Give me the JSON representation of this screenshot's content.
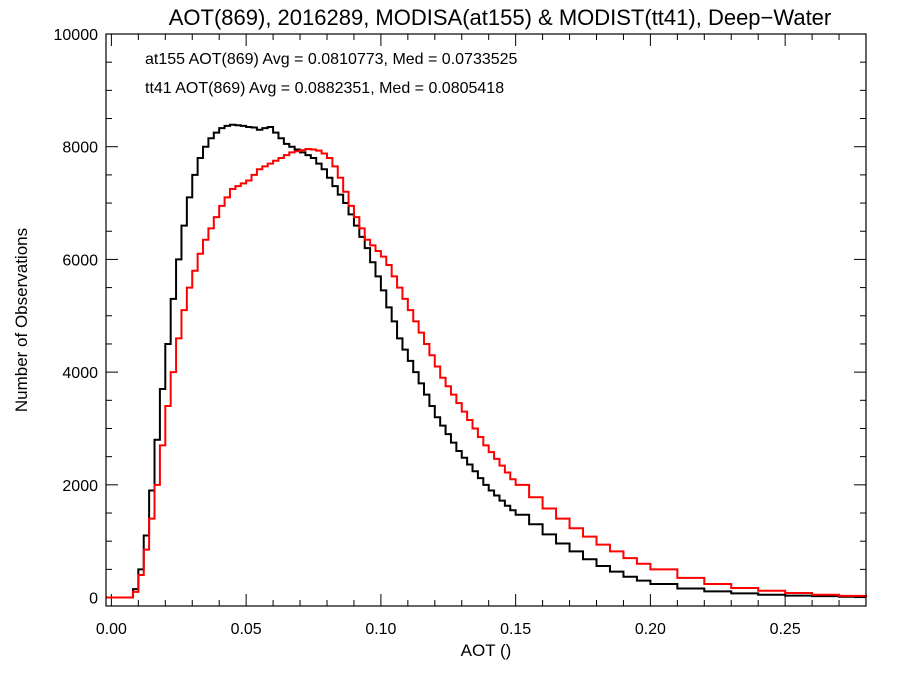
{
  "chart_data": {
    "type": "line",
    "title": "AOT(869), 2016289, MODISA(at155) & MODIST(tt41), Deep−Water",
    "xlabel": "AOT ()",
    "ylabel": "Number of Observations",
    "xlim": [
      -0.002,
      0.28
    ],
    "ylim": [
      -150,
      10000
    ],
    "xticks": [
      0.0,
      0.05,
      0.1,
      0.15,
      0.2,
      0.25
    ],
    "xtick_labels": [
      "0.00",
      "0.05",
      "0.10",
      "0.15",
      "0.20",
      "0.25"
    ],
    "yticks": [
      0,
      2000,
      4000,
      6000,
      8000,
      10000
    ],
    "ytick_labels": [
      "0",
      "2000",
      "4000",
      "6000",
      "8000",
      "10000"
    ],
    "grid": false,
    "legend_position": "top-left",
    "series": [
      {
        "name": "at155",
        "color": "#000000",
        "annotation": "at155 AOT(869) Avg = 0.0810773, Med = 0.0733525",
        "x": [
          -0.002,
          0.006,
          0.008,
          0.01,
          0.012,
          0.014,
          0.016,
          0.018,
          0.02,
          0.022,
          0.024,
          0.026,
          0.028,
          0.03,
          0.032,
          0.034,
          0.036,
          0.038,
          0.04,
          0.042,
          0.044,
          0.046,
          0.048,
          0.05,
          0.052,
          0.054,
          0.056,
          0.058,
          0.06,
          0.062,
          0.064,
          0.066,
          0.068,
          0.07,
          0.072,
          0.074,
          0.076,
          0.078,
          0.08,
          0.082,
          0.084,
          0.086,
          0.088,
          0.09,
          0.092,
          0.094,
          0.096,
          0.098,
          0.1,
          0.102,
          0.104,
          0.106,
          0.108,
          0.11,
          0.112,
          0.114,
          0.116,
          0.118,
          0.12,
          0.122,
          0.124,
          0.126,
          0.128,
          0.13,
          0.132,
          0.134,
          0.136,
          0.138,
          0.14,
          0.142,
          0.144,
          0.146,
          0.148,
          0.15,
          0.155,
          0.16,
          0.165,
          0.17,
          0.175,
          0.18,
          0.185,
          0.19,
          0.195,
          0.2,
          0.21,
          0.22,
          0.23,
          0.24,
          0.25,
          0.26,
          0.27,
          0.28
        ],
        "y": [
          0,
          0,
          150,
          500,
          1100,
          1900,
          2800,
          3700,
          4500,
          5300,
          6000,
          6600,
          7100,
          7500,
          7800,
          8000,
          8150,
          8250,
          8330,
          8370,
          8390,
          8380,
          8370,
          8350,
          8340,
          8300,
          8330,
          8350,
          8250,
          8150,
          8050,
          8000,
          7950,
          7900,
          7850,
          7800,
          7700,
          7600,
          7450,
          7300,
          7150,
          7000,
          6800,
          6600,
          6400,
          6200,
          5950,
          5700,
          5450,
          5150,
          4900,
          4600,
          4400,
          4200,
          4000,
          3800,
          3600,
          3400,
          3200,
          3050,
          2900,
          2750,
          2600,
          2480,
          2360,
          2240,
          2120,
          2000,
          1900,
          1810,
          1720,
          1630,
          1550,
          1470,
          1300,
          1120,
          960,
          820,
          680,
          560,
          460,
          370,
          300,
          240,
          160,
          110,
          75,
          50,
          35,
          25,
          15,
          10
        ]
      },
      {
        "name": "tt41",
        "color": "#ff0000",
        "annotation": "tt41 AOT(869) Avg = 0.0882351, Med = 0.0805418",
        "x": [
          -0.002,
          0.006,
          0.008,
          0.01,
          0.012,
          0.014,
          0.016,
          0.018,
          0.02,
          0.022,
          0.024,
          0.026,
          0.028,
          0.03,
          0.032,
          0.034,
          0.036,
          0.038,
          0.04,
          0.042,
          0.044,
          0.046,
          0.048,
          0.05,
          0.052,
          0.054,
          0.056,
          0.058,
          0.06,
          0.062,
          0.064,
          0.066,
          0.068,
          0.07,
          0.072,
          0.074,
          0.076,
          0.078,
          0.08,
          0.082,
          0.084,
          0.086,
          0.088,
          0.09,
          0.092,
          0.094,
          0.096,
          0.098,
          0.1,
          0.102,
          0.104,
          0.106,
          0.108,
          0.11,
          0.112,
          0.114,
          0.116,
          0.118,
          0.12,
          0.122,
          0.124,
          0.126,
          0.128,
          0.13,
          0.132,
          0.134,
          0.136,
          0.138,
          0.14,
          0.142,
          0.144,
          0.146,
          0.148,
          0.15,
          0.155,
          0.16,
          0.165,
          0.17,
          0.175,
          0.18,
          0.185,
          0.19,
          0.195,
          0.2,
          0.21,
          0.22,
          0.23,
          0.24,
          0.25,
          0.26,
          0.27,
          0.28
        ],
        "y": [
          0,
          0,
          100,
          400,
          850,
          1400,
          2000,
          2700,
          3400,
          4000,
          4600,
          5100,
          5500,
          5800,
          6100,
          6350,
          6550,
          6750,
          6950,
          7100,
          7250,
          7300,
          7350,
          7400,
          7500,
          7600,
          7650,
          7700,
          7750,
          7800,
          7850,
          7900,
          7920,
          7940,
          7960,
          7950,
          7930,
          7880,
          7800,
          7650,
          7450,
          7200,
          6950,
          6750,
          6550,
          6350,
          6250,
          6150,
          6050,
          5900,
          5700,
          5500,
          5300,
          5100,
          4900,
          4700,
          4500,
          4300,
          4100,
          3900,
          3750,
          3600,
          3450,
          3300,
          3150,
          3000,
          2850,
          2700,
          2580,
          2460,
          2340,
          2220,
          2100,
          2000,
          1780,
          1580,
          1400,
          1230,
          1080,
          940,
          820,
          700,
          600,
          500,
          350,
          240,
          170,
          120,
          80,
          50,
          30,
          15
        ]
      }
    ]
  }
}
